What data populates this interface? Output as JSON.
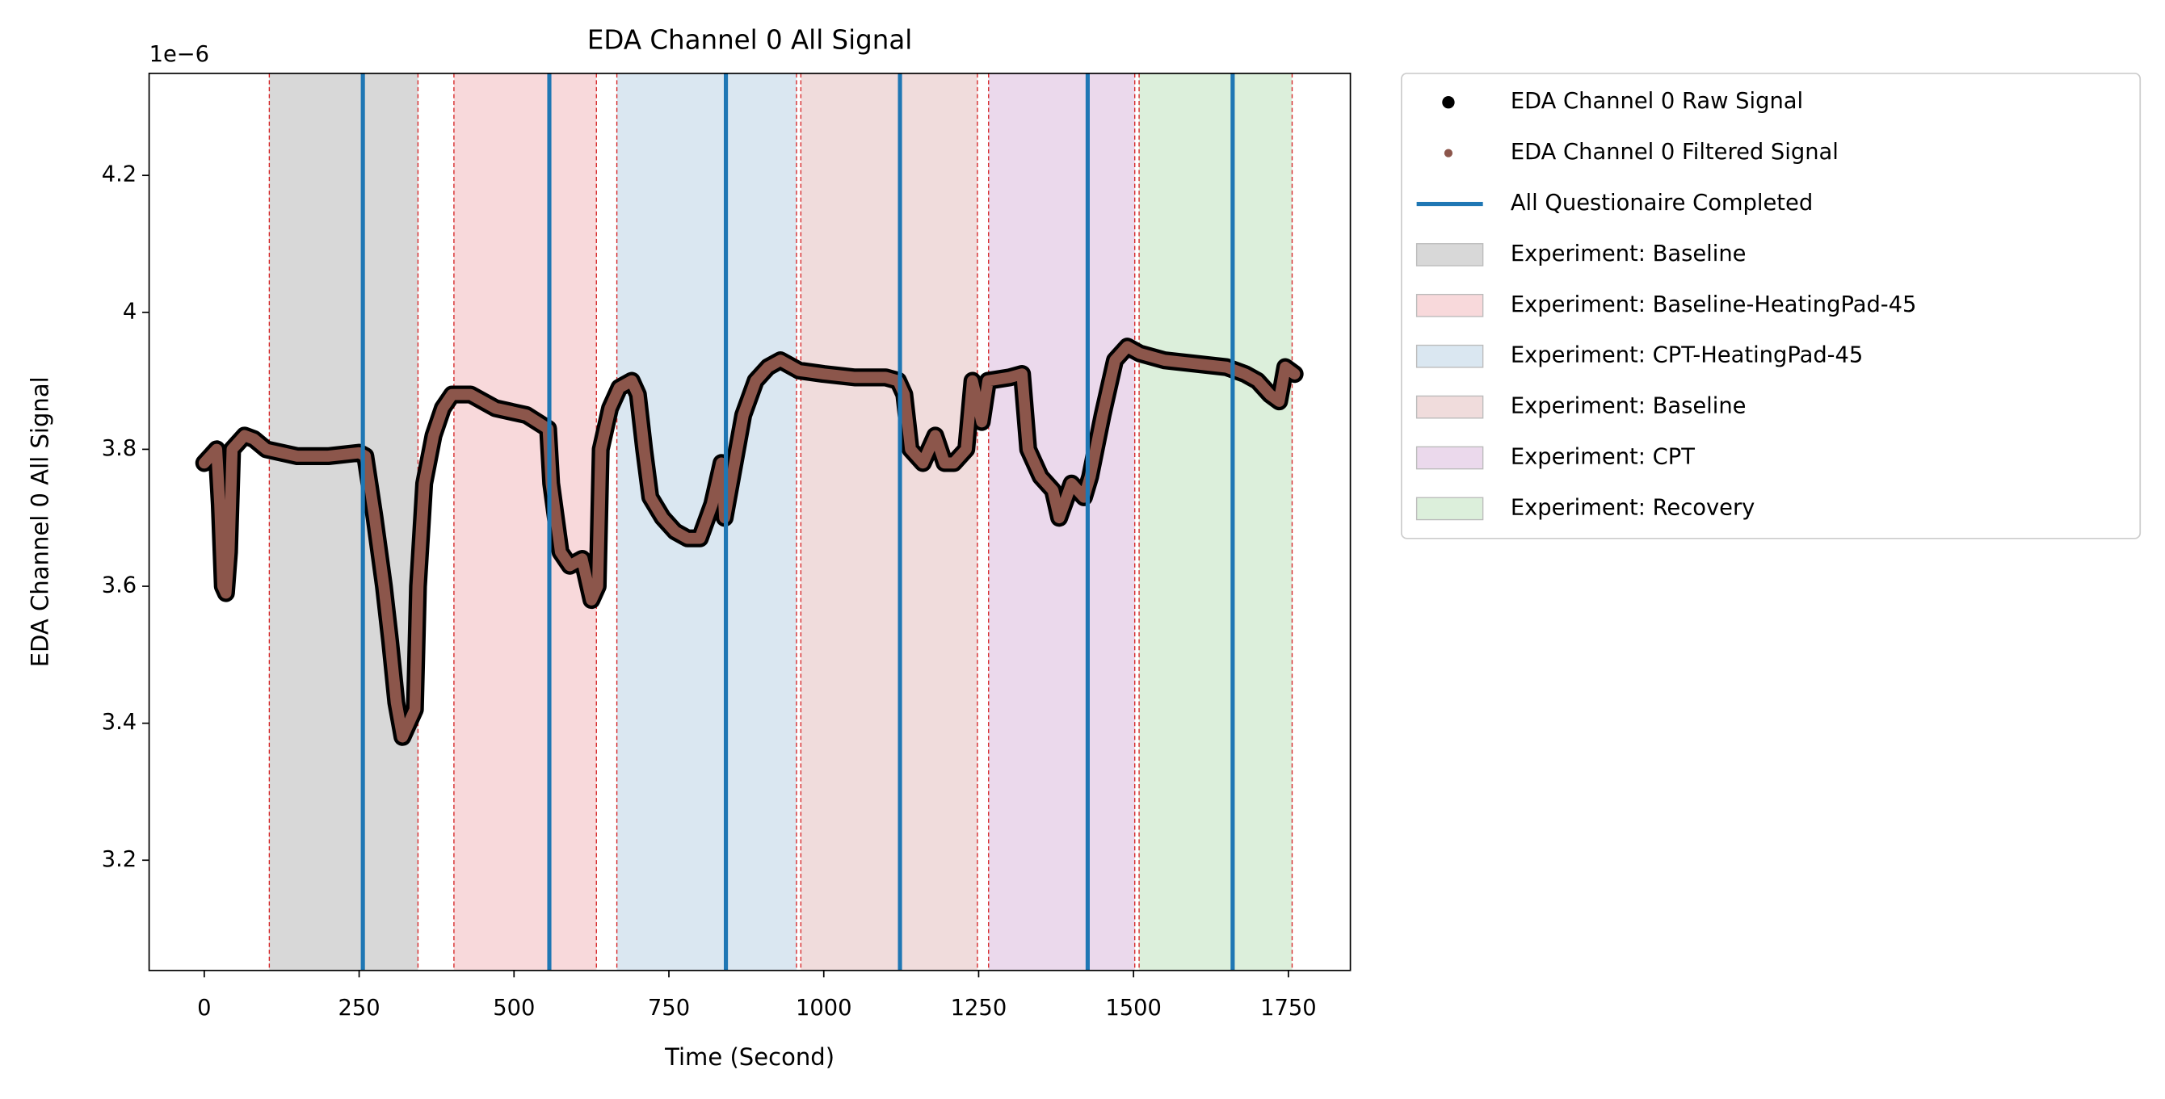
{
  "chart_data": {
    "type": "line",
    "title": "EDA Channel 0 All Signal",
    "xlabel": "Time (Second)",
    "ylabel": "EDA Channel 0 All Signal",
    "y_offset_label": "1e−6",
    "x": [
      0,
      10,
      20,
      25,
      30,
      35,
      40,
      45,
      55,
      65,
      80,
      100,
      150,
      200,
      250,
      260,
      275,
      290,
      300,
      310,
      320,
      330,
      340,
      345,
      355,
      370,
      385,
      400,
      430,
      470,
      520,
      555,
      560,
      575,
      590,
      610,
      625,
      635,
      640,
      655,
      670,
      690,
      700,
      710,
      720,
      740,
      760,
      780,
      800,
      820,
      835,
      840,
      850,
      870,
      890,
      910,
      930,
      960,
      1000,
      1050,
      1100,
      1120,
      1130,
      1140,
      1160,
      1180,
      1195,
      1210,
      1230,
      1240,
      1255,
      1265,
      1300,
      1320,
      1330,
      1350,
      1370,
      1380,
      1400,
      1420,
      1430,
      1450,
      1470,
      1490,
      1510,
      1550,
      1600,
      1650,
      1680,
      1700,
      1720,
      1735,
      1745,
      1760
    ],
    "series": [
      {
        "name": "EDA Channel 0 Raw Signal",
        "color": "#000000",
        "values": [
          3.78,
          3.79,
          3.8,
          3.72,
          3.6,
          3.59,
          3.65,
          3.8,
          3.81,
          3.82,
          3.815,
          3.8,
          3.79,
          3.79,
          3.795,
          3.79,
          3.7,
          3.6,
          3.52,
          3.43,
          3.38,
          3.4,
          3.42,
          3.6,
          3.75,
          3.82,
          3.86,
          3.88,
          3.88,
          3.86,
          3.85,
          3.83,
          3.75,
          3.65,
          3.63,
          3.64,
          3.58,
          3.6,
          3.8,
          3.86,
          3.89,
          3.9,
          3.88,
          3.8,
          3.73,
          3.7,
          3.68,
          3.67,
          3.67,
          3.72,
          3.78,
          3.7,
          3.75,
          3.85,
          3.9,
          3.92,
          3.93,
          3.915,
          3.91,
          3.905,
          3.905,
          3.9,
          3.88,
          3.8,
          3.78,
          3.82,
          3.78,
          3.78,
          3.8,
          3.9,
          3.84,
          3.9,
          3.905,
          3.91,
          3.8,
          3.76,
          3.74,
          3.7,
          3.75,
          3.73,
          3.76,
          3.85,
          3.93,
          3.95,
          3.94,
          3.93,
          3.925,
          3.92,
          3.91,
          3.9,
          3.88,
          3.87,
          3.92,
          3.91
        ]
      },
      {
        "name": "EDA Channel 0 Filtered Signal",
        "color": "#8c564b",
        "values": [
          3.78,
          3.79,
          3.8,
          3.72,
          3.6,
          3.59,
          3.65,
          3.8,
          3.81,
          3.82,
          3.815,
          3.8,
          3.79,
          3.79,
          3.795,
          3.79,
          3.7,
          3.6,
          3.52,
          3.43,
          3.38,
          3.4,
          3.42,
          3.6,
          3.75,
          3.82,
          3.86,
          3.88,
          3.88,
          3.86,
          3.85,
          3.83,
          3.75,
          3.65,
          3.63,
          3.64,
          3.58,
          3.6,
          3.8,
          3.86,
          3.89,
          3.9,
          3.88,
          3.8,
          3.73,
          3.7,
          3.68,
          3.67,
          3.67,
          3.72,
          3.78,
          3.7,
          3.75,
          3.85,
          3.9,
          3.92,
          3.93,
          3.915,
          3.91,
          3.905,
          3.905,
          3.9,
          3.88,
          3.8,
          3.78,
          3.82,
          3.78,
          3.78,
          3.8,
          3.9,
          3.84,
          3.9,
          3.905,
          3.91,
          3.8,
          3.76,
          3.74,
          3.7,
          3.75,
          3.73,
          3.76,
          3.85,
          3.93,
          3.95,
          3.94,
          3.93,
          3.925,
          3.92,
          3.91,
          3.9,
          3.88,
          3.87,
          3.92,
          3.91
        ]
      }
    ],
    "vlines": {
      "name": "All Questionaire Completed",
      "color": "#1f77b4",
      "x": [
        256,
        557,
        842,
        1123,
        1426,
        1660
      ]
    },
    "regions": [
      {
        "name": "Experiment: Baseline",
        "color": "#d8d8d8",
        "start": 105,
        "end": 345
      },
      {
        "name": "Experiment: Baseline-HeatingPad-45",
        "color": "#f8d9db",
        "start": 403,
        "end": 633
      },
      {
        "name": "Experiment: CPT-HeatingPad-45",
        "color": "#dae7f1",
        "start": 666,
        "end": 956
      },
      {
        "name": "Experiment: Baseline",
        "color": "#f0dcdc",
        "start": 963,
        "end": 1248
      },
      {
        "name": "Experiment: CPT",
        "color": "#ebd9ec",
        "start": 1266,
        "end": 1502
      },
      {
        "name": "Experiment: Recovery",
        "color": "#dcefdb",
        "start": 1509,
        "end": 1756
      }
    ],
    "boundary_color": "#d62728",
    "xlim": [
      -89,
      1850
    ],
    "ylim": [
      3.039,
      4.349
    ],
    "xticks": [
      0,
      250,
      500,
      750,
      1000,
      1250,
      1500,
      1750
    ],
    "yticks": [
      3.2,
      3.4,
      3.6,
      3.8,
      4.0,
      4.2
    ]
  }
}
